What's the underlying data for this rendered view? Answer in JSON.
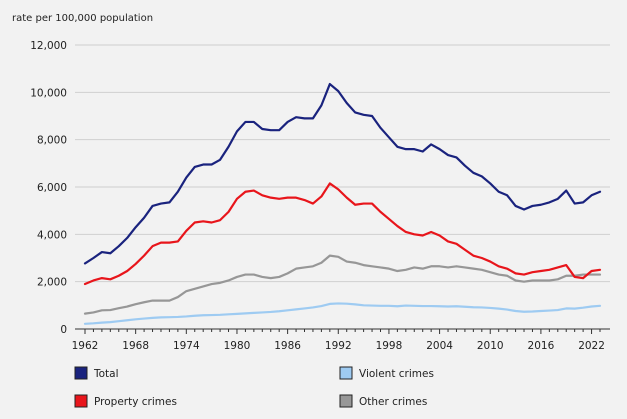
{
  "chart_data": {
    "type": "line",
    "ylabel": "rate per 100,000 population",
    "ylim": [
      0,
      12000
    ],
    "yticks": [
      0,
      2000,
      4000,
      6000,
      8000,
      10000,
      12000
    ],
    "ytick_labels": [
      "0",
      "2,000",
      "4,000",
      "6,000",
      "8,000",
      "10,000",
      "12,000"
    ],
    "xlim": [
      1962,
      2023
    ],
    "xticks": [
      1962,
      1968,
      1974,
      1980,
      1986,
      1992,
      1998,
      2004,
      2010,
      2016,
      2022
    ],
    "xtick_labels": [
      "1962",
      "1968",
      "1974",
      "1980",
      "1986",
      "1992",
      "1998",
      "2004",
      "2010",
      "2016",
      "2022"
    ],
    "grid": "horizontal",
    "legend_position": "bottom",
    "x": [
      1962,
      1963,
      1964,
      1965,
      1966,
      1967,
      1968,
      1969,
      1970,
      1971,
      1972,
      1973,
      1974,
      1975,
      1976,
      1977,
      1978,
      1979,
      1980,
      1981,
      1982,
      1983,
      1984,
      1985,
      1986,
      1987,
      1988,
      1989,
      1990,
      1991,
      1992,
      1993,
      1994,
      1995,
      1996,
      1997,
      1998,
      1999,
      2000,
      2001,
      2002,
      2003,
      2004,
      2005,
      2006,
      2007,
      2008,
      2009,
      2010,
      2011,
      2012,
      2013,
      2014,
      2015,
      2016,
      2017,
      2018,
      2019,
      2020,
      2021,
      2022,
      2023
    ],
    "series": [
      {
        "name": "Total",
        "color": "#1a237e",
        "values": [
          2770,
          3000,
          3250,
          3200,
          3500,
          3850,
          4300,
          4700,
          5200,
          5300,
          5350,
          5800,
          6400,
          6850,
          6950,
          6950,
          7150,
          7700,
          8350,
          8750,
          8750,
          8450,
          8400,
          8400,
          8750,
          8950,
          8900,
          8900,
          9450,
          10350,
          10050,
          9550,
          9150,
          9050,
          9000,
          8500,
          8100,
          7700,
          7600,
          7600,
          7500,
          7800,
          7600,
          7350,
          7250,
          6900,
          6600,
          6450,
          6150,
          5800,
          5650,
          5200,
          5050,
          5200,
          5250,
          5350,
          5500,
          5850,
          5300,
          5350,
          5650,
          5800
        ]
      },
      {
        "name": "Violent crimes",
        "color": "#9ecbf2",
        "values": [
          220,
          240,
          270,
          290,
          330,
          370,
          410,
          440,
          470,
          490,
          500,
          510,
          530,
          560,
          580,
          590,
          600,
          620,
          640,
          660,
          680,
          700,
          720,
          750,
          790,
          830,
          870,
          910,
          970,
          1060,
          1080,
          1070,
          1040,
          1000,
          990,
          980,
          980,
          960,
          990,
          980,
          970,
          970,
          960,
          950,
          960,
          940,
          920,
          910,
          890,
          860,
          820,
          760,
          730,
          740,
          760,
          780,
          800,
          870,
          860,
          900,
          950,
          980
        ]
      },
      {
        "name": "Property crimes",
        "color": "#e8151b",
        "values": [
          1900,
          2050,
          2150,
          2100,
          2250,
          2450,
          2750,
          3100,
          3500,
          3650,
          3650,
          3700,
          4150,
          4500,
          4550,
          4500,
          4600,
          4950,
          5500,
          5800,
          5850,
          5650,
          5550,
          5500,
          5550,
          5550,
          5450,
          5300,
          5600,
          6150,
          5900,
          5550,
          5250,
          5300,
          5300,
          4950,
          4650,
          4350,
          4100,
          4000,
          3950,
          4100,
          3950,
          3700,
          3600,
          3350,
          3100,
          3000,
          2850,
          2650,
          2550,
          2350,
          2300,
          2400,
          2450,
          2500,
          2600,
          2700,
          2200,
          2150,
          2450,
          2500
        ]
      },
      {
        "name": "Other crimes",
        "color": "#979797",
        "values": [
          650,
          700,
          790,
          800,
          880,
          950,
          1050,
          1130,
          1200,
          1200,
          1200,
          1350,
          1600,
          1700,
          1800,
          1900,
          1950,
          2050,
          2200,
          2300,
          2300,
          2200,
          2150,
          2200,
          2350,
          2550,
          2600,
          2650,
          2800,
          3100,
          3050,
          2850,
          2800,
          2700,
          2650,
          2600,
          2550,
          2450,
          2500,
          2600,
          2550,
          2650,
          2650,
          2600,
          2650,
          2600,
          2550,
          2500,
          2400,
          2300,
          2250,
          2050,
          2000,
          2050,
          2050,
          2050,
          2100,
          2250,
          2250,
          2300,
          2300,
          2300
        ]
      }
    ]
  }
}
